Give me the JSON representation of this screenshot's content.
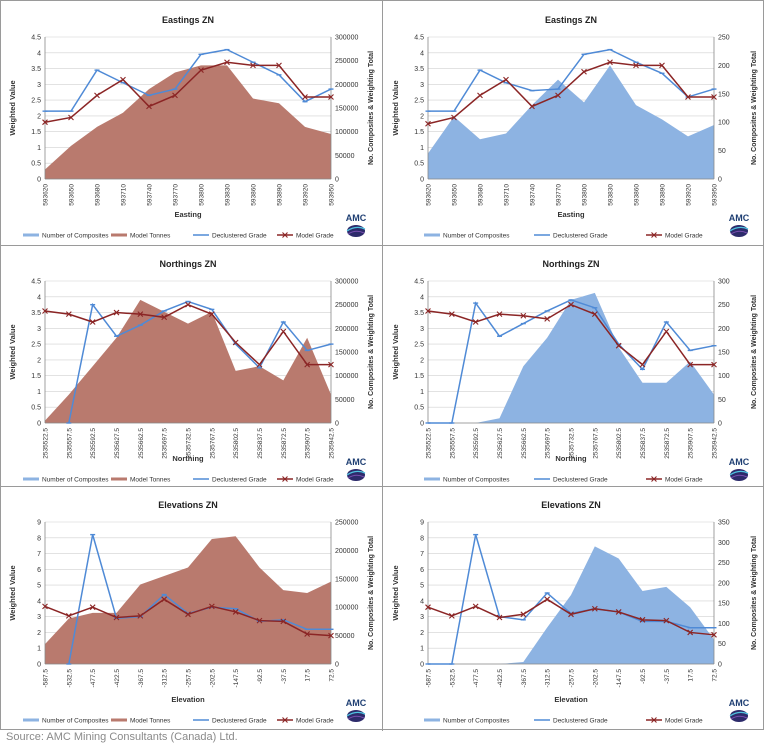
{
  "source": "Source: AMC Mining Consultants (Canada) Ltd.",
  "colors": {
    "tonnes": "#b97a6e",
    "composites_area": "#8db3e2",
    "declustered": "#4f8ad6",
    "model": "#8b2525"
  },
  "logo_text": "AMC",
  "chart_data": [
    {
      "type": "line",
      "title": "Eastings ZN",
      "xlabel": "Easting",
      "ylabel": "Weighted Value",
      "y2label": "No. Composites & Weighting Total",
      "categories": [
        "593620",
        "593650",
        "593680",
        "593710",
        "593740",
        "593770",
        "593800",
        "593830",
        "593860",
        "593890",
        "593920",
        "593950"
      ],
      "ylim": [
        0,
        4.5
      ],
      "yticks": [
        "0",
        "0.5",
        "1",
        "1.5",
        "2",
        "2.5",
        "3",
        "3.5",
        "4",
        "4.5"
      ],
      "y2lim": [
        0,
        300000
      ],
      "y2ticks": [
        "0",
        "50000",
        "100000",
        "150000",
        "200000",
        "250000",
        "300000"
      ],
      "area": {
        "name": "Model Tonnes",
        "values": [
          20000,
          70000,
          110000,
          140000,
          190000,
          225000,
          240000,
          240000,
          170000,
          160000,
          110000,
          95000
        ]
      },
      "series": [
        {
          "name": "Declustered Grade",
          "values": [
            2.15,
            2.15,
            3.45,
            3.05,
            2.65,
            2.85,
            3.95,
            4.1,
            3.7,
            3.3,
            2.45,
            2.85
          ]
        },
        {
          "name": "Model Grade",
          "values": [
            1.8,
            1.95,
            2.65,
            3.15,
            2.3,
            2.65,
            3.45,
            3.7,
            3.6,
            3.6,
            2.6,
            2.6
          ]
        }
      ],
      "legend": [
        "Number of Composites",
        "Model Tonnes",
        "Declustered Grade",
        "Model Grade"
      ]
    },
    {
      "type": "line",
      "title": "Eastings ZN",
      "xlabel": "Easting",
      "ylabel": "Weighted Value",
      "y2label": "No. Composites & Weighting Total",
      "categories": [
        "593620",
        "593650",
        "593680",
        "593710",
        "593740",
        "593770",
        "593800",
        "593830",
        "593860",
        "593890",
        "593920",
        "593950"
      ],
      "ylim": [
        0,
        4.5
      ],
      "yticks": [
        "0",
        "0.5",
        "1",
        "1.5",
        "2",
        "2.5",
        "3",
        "3.5",
        "4",
        "4.5"
      ],
      "y2lim": [
        0,
        250
      ],
      "y2ticks": [
        "0",
        "50",
        "100",
        "150",
        "200",
        "250"
      ],
      "area": {
        "name": "Number of Composites",
        "values": [
          45,
          110,
          70,
          80,
          130,
          175,
          135,
          200,
          130,
          105,
          75,
          95
        ]
      },
      "series": [
        {
          "name": "Declustered Grade",
          "values": [
            2.15,
            2.15,
            3.45,
            3.05,
            2.8,
            2.85,
            3.95,
            4.1,
            3.7,
            3.35,
            2.6,
            2.85
          ]
        },
        {
          "name": "Model Grade",
          "values": [
            1.75,
            1.95,
            2.65,
            3.15,
            2.3,
            2.65,
            3.4,
            3.7,
            3.6,
            3.6,
            2.6,
            2.6
          ]
        }
      ],
      "legend": [
        "Number of Composites",
        "Declustered Grade",
        "Model Grade"
      ]
    },
    {
      "type": "line",
      "title": "Northings ZN",
      "xlabel": "Northing",
      "ylabel": "Weighted Value",
      "y2label": "No. Composites & Weighting Total",
      "categories": [
        "2535522.5",
        "2535557.5",
        "2535592.5",
        "2535627.5",
        "2535662.5",
        "2535697.5",
        "2535732.5",
        "2535767.5",
        "2535802.5",
        "2535837.5",
        "2535872.5",
        "2535907.5",
        "2535942.5"
      ],
      "ylim": [
        0,
        4.5
      ],
      "yticks": [
        "0",
        "0.5",
        "1",
        "1.5",
        "2",
        "2.5",
        "3",
        "3.5",
        "4",
        "4.5"
      ],
      "y2lim": [
        0,
        300000
      ],
      "y2ticks": [
        "0",
        "50000",
        "100000",
        "150000",
        "200000",
        "250000",
        "300000"
      ],
      "area": {
        "name": "Model Tonnes",
        "values": [
          5000,
          60000,
          120000,
          180000,
          260000,
          235000,
          210000,
          235000,
          110000,
          120000,
          90000,
          180000,
          60000
        ]
      },
      "series": [
        {
          "name": "Declustered Grade",
          "values": [
            null,
            0,
            3.75,
            2.75,
            3.1,
            3.55,
            3.85,
            3.6,
            2.5,
            1.75,
            3.2,
            2.3,
            2.5
          ]
        },
        {
          "name": "Model Grade",
          "values": [
            3.55,
            3.45,
            3.2,
            3.5,
            3.45,
            3.35,
            3.75,
            3.45,
            2.55,
            1.85,
            2.9,
            1.85,
            1.85
          ]
        }
      ],
      "legend": [
        "Number of Composites",
        "Model Tonnes",
        "Declustered Grade",
        "Model Grade"
      ]
    },
    {
      "type": "line",
      "title": "Northings ZN",
      "xlabel": "Northing",
      "ylabel": "Weighted Value",
      "y2label": "No. Composites & Weighting Total",
      "categories": [
        "2535522.5",
        "2535557.5",
        "2535592.5",
        "2535627.5",
        "2535662.5",
        "2535697.5",
        "2535732.5",
        "2535767.5",
        "2535802.5",
        "2535837.5",
        "2535872.5",
        "2535907.5",
        "2535942.5"
      ],
      "ylim": [
        0,
        4.5
      ],
      "yticks": [
        "0",
        "0.5",
        "1",
        "1.5",
        "2",
        "2.5",
        "3",
        "3.5",
        "4",
        "4.5"
      ],
      "y2lim": [
        0,
        300
      ],
      "y2ticks": [
        "0",
        "50",
        "100",
        "150",
        "200",
        "250",
        "300"
      ],
      "area": {
        "name": "Number of Composites",
        "values": [
          0,
          0,
          0,
          10,
          120,
          180,
          260,
          275,
          160,
          85,
          85,
          130,
          60
        ]
      },
      "series": [
        {
          "name": "Declustered Grade",
          "values": [
            0,
            0,
            3.8,
            2.75,
            3.15,
            3.55,
            3.9,
            3.65,
            2.5,
            1.7,
            3.2,
            2.3,
            2.45
          ]
        },
        {
          "name": "Model Grade",
          "values": [
            3.55,
            3.45,
            3.2,
            3.45,
            3.4,
            3.3,
            3.75,
            3.45,
            2.45,
            1.85,
            2.9,
            1.85,
            1.85
          ]
        }
      ],
      "legend": [
        "Number of Composites",
        "Declustered Grade",
        "Model Grade"
      ]
    },
    {
      "type": "line",
      "title": "Elevations ZN",
      "xlabel": "Elevation",
      "ylabel": "Weighted Value",
      "y2label": "No. Composites & Weighting Total",
      "categories": [
        "-587.5",
        "-532.5",
        "-477.5",
        "-422.5",
        "-367.5",
        "-312.5",
        "-257.5",
        "-202.5",
        "-147.5",
        "-92.5",
        "-37.5",
        "17.5",
        "72.5"
      ],
      "ylim": [
        0,
        9
      ],
      "yticks": [
        "0",
        "1",
        "2",
        "3",
        "4",
        "5",
        "6",
        "7",
        "8",
        "9"
      ],
      "y2lim": [
        0,
        250000
      ],
      "y2ticks": [
        "0",
        "50000",
        "100000",
        "150000",
        "200000",
        "250000"
      ],
      "area": {
        "name": "Model Tonnes",
        "values": [
          35000,
          80000,
          90000,
          90000,
          140000,
          155000,
          170000,
          220000,
          225000,
          170000,
          130000,
          125000,
          145000
        ]
      },
      "series": [
        {
          "name": "Declustered Grade",
          "values": [
            null,
            0,
            8.2,
            2.9,
            3.0,
            4.4,
            3.2,
            3.6,
            3.5,
            2.7,
            2.8,
            2.2,
            2.2
          ]
        },
        {
          "name": "Model Grade",
          "values": [
            3.65,
            3.05,
            3.6,
            2.95,
            3.05,
            4.1,
            3.15,
            3.65,
            3.3,
            2.75,
            2.7,
            1.9,
            1.8
          ]
        }
      ],
      "legend": [
        "Number of Composites",
        "Model Tonnes",
        "Declustered Grade",
        "Model Grade"
      ]
    },
    {
      "type": "line",
      "title": "Elevations ZN",
      "xlabel": "Elevation",
      "ylabel": "Weighted Value",
      "y2label": "No. Composites & Weighting Total",
      "categories": [
        "-587.5",
        "-532.5",
        "-477.5",
        "-422.5",
        "-367.5",
        "-312.5",
        "-257.5",
        "-202.5",
        "-147.5",
        "-92.5",
        "-37.5",
        "17.5",
        "72.5"
      ],
      "ylim": [
        0,
        9
      ],
      "yticks": [
        "0",
        "1",
        "2",
        "3",
        "4",
        "5",
        "6",
        "7",
        "8",
        "9"
      ],
      "y2lim": [
        0,
        350
      ],
      "y2ticks": [
        "0",
        "50",
        "100",
        "150",
        "200",
        "250",
        "300",
        "350"
      ],
      "area": {
        "name": "Number of Composites",
        "values": [
          0,
          0,
          0,
          0,
          5,
          90,
          170,
          290,
          260,
          180,
          190,
          140,
          60
        ]
      },
      "series": [
        {
          "name": "Declustered Grade",
          "values": [
            0,
            0,
            8.2,
            3.0,
            2.8,
            4.5,
            3.2,
            3.5,
            3.3,
            2.7,
            2.7,
            2.3,
            2.3
          ]
        },
        {
          "name": "Model Grade",
          "values": [
            3.6,
            3.05,
            3.65,
            2.95,
            3.15,
            4.1,
            3.15,
            3.5,
            3.3,
            2.8,
            2.75,
            2.0,
            1.85
          ]
        }
      ],
      "legend": [
        "Number of Composites",
        "Declustered Grade",
        "Model Grade"
      ]
    }
  ]
}
